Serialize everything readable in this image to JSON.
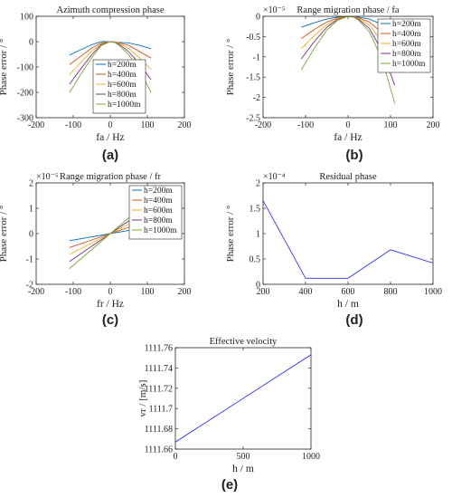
{
  "chart_data": [
    {
      "panel": "(a)",
      "type": "line",
      "title": "Azimuth compression phase",
      "exponent": "",
      "xlabel": "fa / Hz",
      "ylabel": "Phase error / °",
      "xlim": [
        -200,
        200
      ],
      "ylim": [
        -300,
        100
      ],
      "xticks": [
        "-200",
        "-100",
        "0",
        "100",
        "200"
      ],
      "yticks": [
        "-300",
        "-200",
        "-100",
        "0",
        "100"
      ],
      "legend_position": "center",
      "x": [
        -110,
        -80,
        -50,
        -25,
        0,
        13,
        25,
        50,
        80,
        110
      ],
      "series": [
        {
          "name": "h=200m",
          "color": "#0072bd",
          "values": [
            -53,
            -32,
            -12,
            0,
            0,
            -3,
            -3,
            -5,
            -15,
            -28
          ]
        },
        {
          "name": "h=400m",
          "color": "#d95319",
          "values": [
            -90,
            -58,
            -25,
            -5,
            0,
            -1,
            -5,
            -15,
            -40,
            -65
          ]
        },
        {
          "name": "h=600m",
          "color": "#edb120",
          "values": [
            -130,
            -82,
            -38,
            -8,
            0,
            -2,
            -8,
            -28,
            -65,
            -110
          ]
        },
        {
          "name": "h=800m",
          "color": "#7e2f8e",
          "values": [
            -168,
            -108,
            -52,
            -12,
            0,
            -3,
            -12,
            -40,
            -90,
            -150
          ]
        },
        {
          "name": "h=1000m",
          "color": "#77ac30",
          "values": [
            -200,
            -130,
            -64,
            -16,
            0,
            -4,
            -16,
            -52,
            -115,
            -200
          ]
        }
      ]
    },
    {
      "panel": "(b)",
      "type": "line",
      "title": "Range migration phase / fa",
      "exponent": "×10⁻⁵",
      "xlabel": "fa / Hz",
      "ylabel": "Phase error / °",
      "xlim": [
        -200,
        200
      ],
      "ylim": [
        -2.5,
        0
      ],
      "xticks": [
        "-200",
        "-100",
        "0",
        "100",
        "200"
      ],
      "yticks": [
        "-2.5",
        "-2",
        "-1.5",
        "-1",
        "-0.5",
        "0"
      ],
      "legend_position": "top-right",
      "x": [
        -110,
        -80,
        -50,
        -25,
        0,
        13,
        25,
        50,
        80,
        110
      ],
      "series": [
        {
          "name": "h=200m",
          "color": "#0072bd",
          "values": [
            -0.27,
            -0.16,
            -0.07,
            -0.02,
            0,
            0,
            -0.02,
            -0.07,
            -0.2,
            -0.4
          ]
        },
        {
          "name": "h=400m",
          "color": "#d95319",
          "values": [
            -0.55,
            -0.33,
            -0.14,
            -0.04,
            0,
            -0.01,
            -0.04,
            -0.14,
            -0.4,
            -0.85
          ]
        },
        {
          "name": "h=600m",
          "color": "#edb120",
          "values": [
            -0.8,
            -0.48,
            -0.21,
            -0.06,
            0,
            -0.01,
            -0.06,
            -0.22,
            -0.62,
            -1.25
          ]
        },
        {
          "name": "h=800m",
          "color": "#7e2f8e",
          "values": [
            -1.05,
            -0.63,
            -0.27,
            -0.08,
            0,
            -0.02,
            -0.08,
            -0.3,
            -0.85,
            -1.7
          ]
        },
        {
          "name": "h=1000m",
          "color": "#77ac30",
          "values": [
            -1.32,
            -0.8,
            -0.34,
            -0.1,
            0,
            -0.02,
            -0.1,
            -0.38,
            -1.05,
            -2.15
          ]
        }
      ]
    },
    {
      "panel": "(c)",
      "type": "line",
      "title": "Range migration phase / fr",
      "exponent": "×10⁻⁵",
      "xlabel": "fr / Hz",
      "ylabel": "Phase error / °",
      "xlim": [
        -200,
        200
      ],
      "ylim": [
        -2,
        2
      ],
      "xticks": [
        "-200",
        "-100",
        "0",
        "100",
        "200"
      ],
      "yticks": [
        "-2",
        "-1",
        "0",
        "1",
        "2"
      ],
      "legend_position": "top-right",
      "x": [
        -110,
        0,
        110
      ],
      "series": [
        {
          "name": "h=200m",
          "color": "#0072bd",
          "values": [
            -0.28,
            0,
            0.28
          ]
        },
        {
          "name": "h=400m",
          "color": "#d95319",
          "values": [
            -0.55,
            0,
            0.55
          ]
        },
        {
          "name": "h=600m",
          "color": "#edb120",
          "values": [
            -0.82,
            0,
            0.82
          ]
        },
        {
          "name": "h=800m",
          "color": "#7e2f8e",
          "values": [
            -1.1,
            0,
            1.1
          ]
        },
        {
          "name": "h=1000m",
          "color": "#77ac30",
          "values": [
            -1.38,
            0,
            1.38
          ]
        }
      ]
    },
    {
      "panel": "(d)",
      "type": "line",
      "title": "Residual phase",
      "exponent": "×10⁻⁴",
      "xlabel": "h / m",
      "ylabel": "Phase error / °",
      "xlim": [
        200,
        1000
      ],
      "ylim": [
        0,
        2
      ],
      "xticks": [
        "200",
        "400",
        "600",
        "800",
        "1000"
      ],
      "yticks": [
        "0",
        "0.5",
        "1",
        "1.5",
        "2"
      ],
      "x": [
        200,
        400,
        600,
        800,
        1000
      ],
      "series": [
        {
          "name": "",
          "color": "#3333ff",
          "values": [
            1.65,
            0.12,
            0.12,
            0.68,
            0.42
          ]
        }
      ]
    },
    {
      "panel": "(e)",
      "type": "line",
      "title": "Effective velocity",
      "exponent": "",
      "xlabel": "h / m",
      "ylabel": "vr / [m/s]",
      "xlim": [
        0,
        1000
      ],
      "ylim": [
        1111.66,
        1111.76
      ],
      "xticks": [
        "0",
        "500",
        "1000"
      ],
      "yticks": [
        "1111.66",
        "1111.68",
        "1111.7",
        "1111.72",
        "1111.74",
        "1111.76"
      ],
      "x": [
        0,
        1000
      ],
      "series": [
        {
          "name": "",
          "color": "#3333ff",
          "values": [
            1111.667,
            1111.753
          ]
        }
      ]
    }
  ],
  "captions": [
    "(a)",
    "(b)",
    "(c)",
    "(d)",
    "(e)"
  ]
}
